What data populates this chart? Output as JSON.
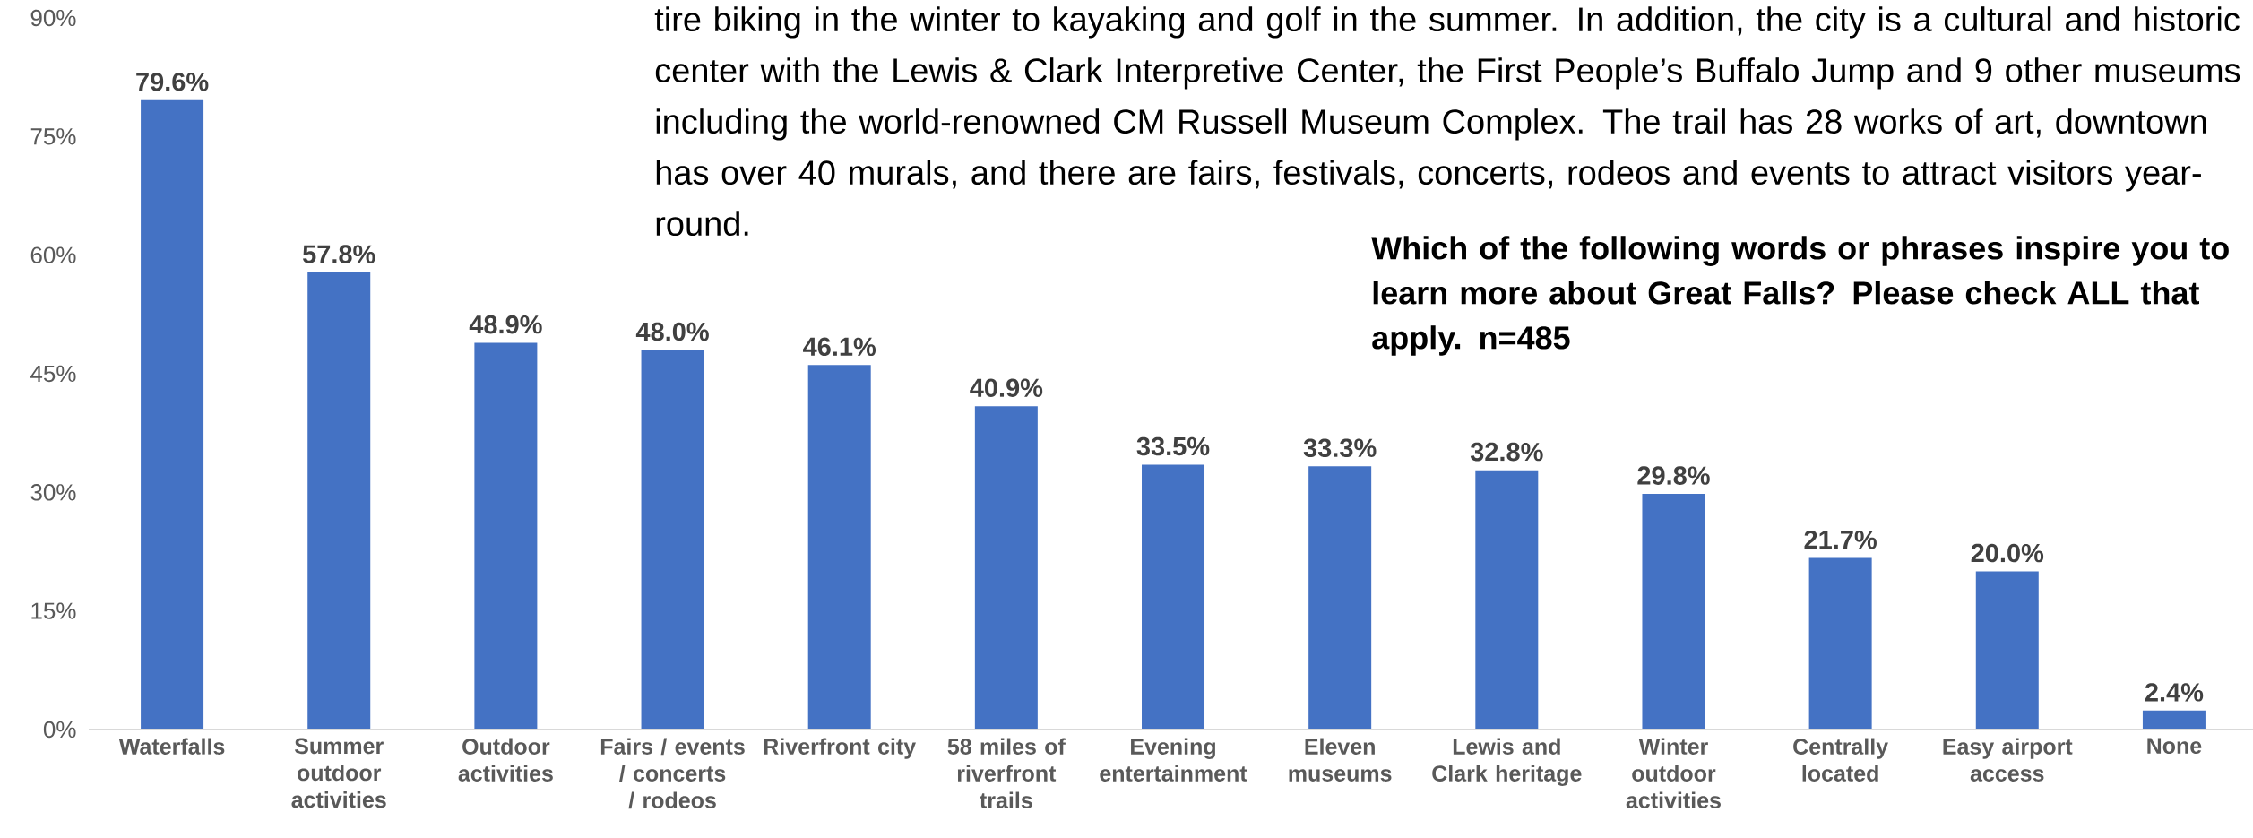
{
  "chart_data": {
    "type": "bar",
    "title": "Which of the following words or phrases inspire you to learn more about Great Falls? Please check ALL that apply. n=485",
    "annotations": [
      "tire biking in the winter to kayaking and golf in the summer. In addition, the city is a cultural and historic center with the Lewis & Clark Interpretive Center, the First People’s Buffalo Jump and 9 other museums including the world-renowned CM Russell Museum Complex. The trail has 28 works of art, downtown has over 40 murals, and there are fairs, festivals, concerts, rodeos and events to attract visitors year-round."
    ],
    "categories": [
      "Waterfalls",
      "Summer outdoor activities",
      "Outdoor activities",
      "Fairs / events / concerts / rodeos",
      "Riverfront city",
      "58 miles of riverfront trails",
      "Evening entertainment",
      "Eleven museums",
      "Lewis and Clark heritage",
      "Winter outdoor activities",
      "Centrally located",
      "Easy airport access",
      "None"
    ],
    "values": [
      79.6,
      57.8,
      48.9,
      48.0,
      46.1,
      40.9,
      33.5,
      33.3,
      32.8,
      29.8,
      21.7,
      20.0,
      2.4
    ],
    "value_labels": [
      "79.6%",
      "57.8%",
      "48.9%",
      "48.0%",
      "46.1%",
      "40.9%",
      "33.5%",
      "33.3%",
      "32.8%",
      "29.8%",
      "21.7%",
      "20.0%",
      "2.4%"
    ],
    "color": "#4472c4",
    "ylim": [
      0,
      90
    ],
    "yticks": [
      {
        "value": 0,
        "label": "0%"
      },
      {
        "value": 15,
        "label": "15%"
      },
      {
        "value": 30,
        "label": "30%"
      },
      {
        "value": 45,
        "label": "45%"
      },
      {
        "value": 60,
        "label": "60%"
      },
      {
        "value": 75,
        "label": "75%"
      },
      {
        "value": 90,
        "label": "90%"
      }
    ]
  }
}
